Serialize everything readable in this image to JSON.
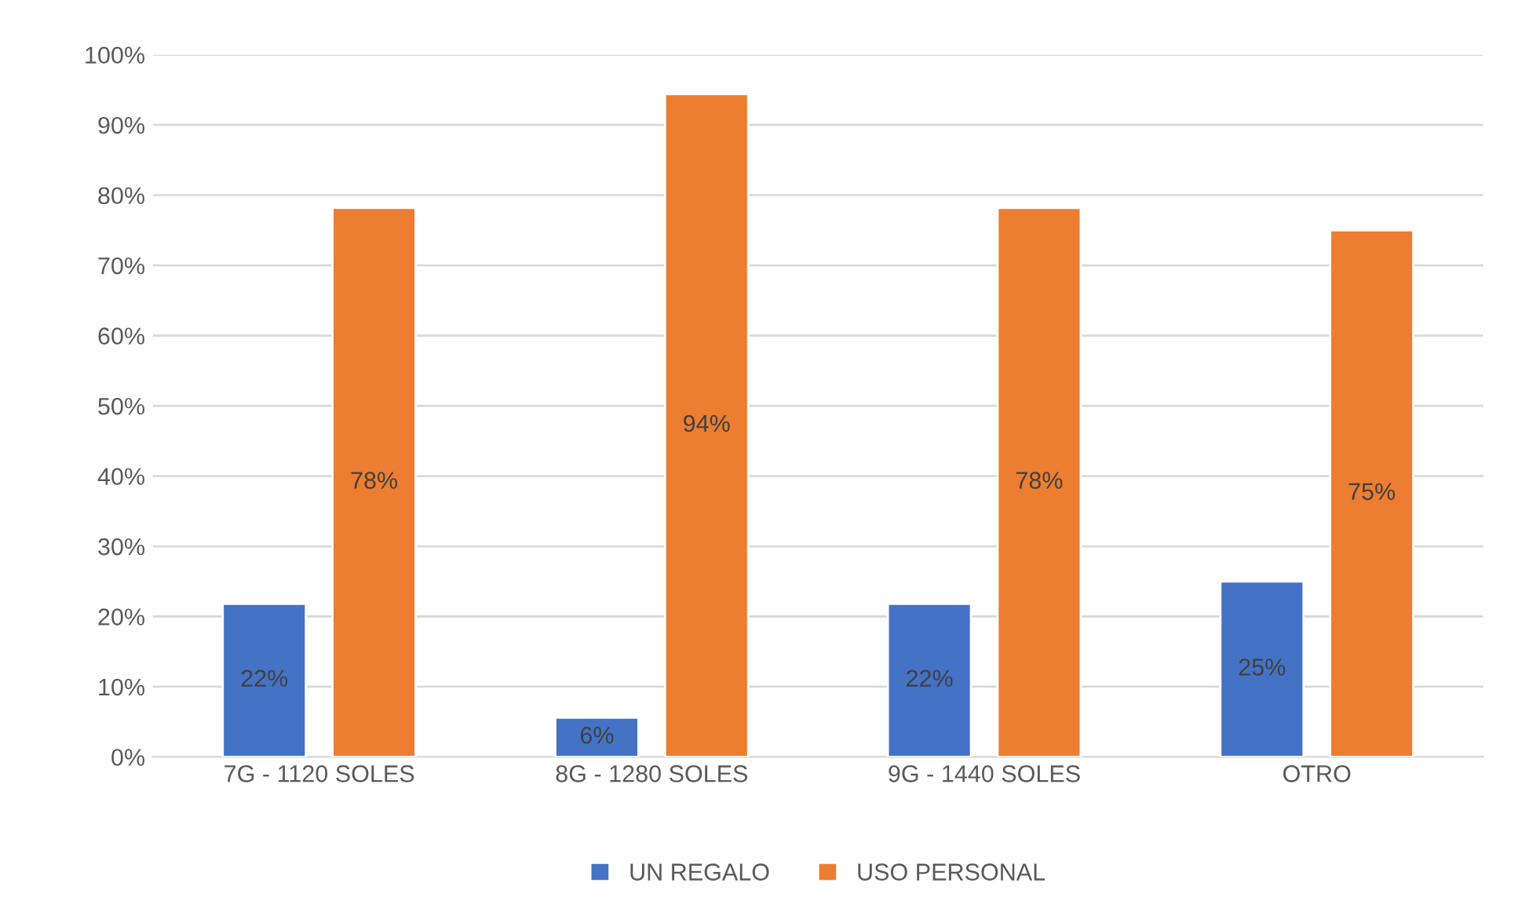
{
  "chart_data": {
    "type": "bar",
    "categories": [
      "7G - 1120 SOLES",
      "8G - 1280 SOLES",
      "9G - 1440 SOLES",
      "OTRO"
    ],
    "series": [
      {
        "name": "UN REGALO",
        "color": "#4472c4",
        "values": [
          21.8,
          5.6,
          21.8,
          25
        ],
        "value_labels": [
          "22%",
          "6%",
          "22%",
          "25%"
        ]
      },
      {
        "name": "USO PERSONAL",
        "color": "#ed7d31",
        "values": [
          78.2,
          94.4,
          78.2,
          75
        ],
        "value_labels": [
          "78%",
          "94%",
          "78%",
          "75%"
        ]
      }
    ],
    "ylim": [
      0,
      100
    ],
    "yticks": [
      {
        "value": 0,
        "label": "0%"
      },
      {
        "value": 10,
        "label": "10%"
      },
      {
        "value": 20,
        "label": "20%"
      },
      {
        "value": 30,
        "label": "30%"
      },
      {
        "value": 40,
        "label": "40%"
      },
      {
        "value": 50,
        "label": "50%"
      },
      {
        "value": 60,
        "label": "60%"
      },
      {
        "value": 70,
        "label": "70%"
      },
      {
        "value": 80,
        "label": "80%"
      },
      {
        "value": 90,
        "label": "90%"
      },
      {
        "value": 100,
        "label": "100%"
      }
    ],
    "grid": "y",
    "legend": "bottom"
  }
}
